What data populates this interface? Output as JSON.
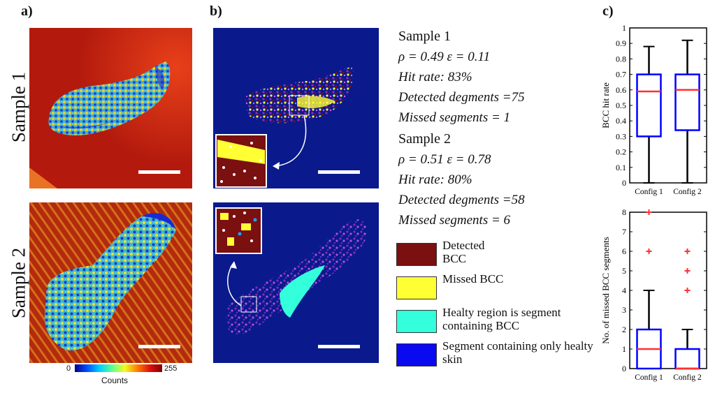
{
  "panels": {
    "a": "a)",
    "b": "b)",
    "c": "c)"
  },
  "rows": {
    "sample1": "Sample 1",
    "sample2": "Sample 2"
  },
  "stats": {
    "sample1": {
      "title": "Sample 1",
      "params": "ρ = 0.49   ε = 0.11",
      "hit_rate": "Hit rate: 83%",
      "detected": "Detected degments =75",
      "missed": "Missed segments = 1"
    },
    "sample2": {
      "title": "Sample 2",
      "params": "ρ = 0.51   ε = 0.78",
      "hit_rate": "Hit rate: 80%",
      "detected": "Detected degments =58",
      "missed": "Missed segments = 6"
    }
  },
  "legend": [
    {
      "label": "Detected BCC",
      "color": "#7a1010"
    },
    {
      "label": "Missed BCC",
      "color": "#ffff33"
    },
    {
      "label": "Healty region is segment containing BCC",
      "color": "#33ffdd"
    },
    {
      "label": "Segment containing only healty skin",
      "color": "#0a0af0"
    }
  ],
  "colorbar": {
    "min": "0",
    "max": "255",
    "label": "Counts"
  },
  "colors": {
    "background_red": "#b31a0d",
    "background_blue": "#0a1a8c",
    "box_edge": "#0000ff",
    "median": "#ff3030",
    "outlier": "#ff3030"
  },
  "chart_data": [
    {
      "type": "box",
      "ylabel": "BCC hit rate",
      "categories": [
        "Config 1",
        "Config 2"
      ],
      "ylim": [
        0,
        1
      ],
      "yticks": [
        "0",
        "0.1",
        "0.2",
        "0.3",
        "0.4",
        "0.5",
        "0.6",
        "0.7",
        "0.8",
        "0.9",
        "1"
      ],
      "boxes": [
        {
          "min": 0,
          "q1": 0.3,
          "median": 0.59,
          "q3": 0.7,
          "max": 0.88,
          "outliers": []
        },
        {
          "min": 0,
          "q1": 0.34,
          "median": 0.6,
          "q3": 0.7,
          "max": 0.92,
          "outliers": []
        }
      ]
    },
    {
      "type": "box",
      "ylabel": "No. of missed BCC segments",
      "categories": [
        "Config 1",
        "Config 2"
      ],
      "ylim": [
        0,
        8
      ],
      "yticks": [
        "0",
        "1",
        "2",
        "3",
        "4",
        "5",
        "6",
        "7",
        "8"
      ],
      "boxes": [
        {
          "min": 0,
          "q1": 0,
          "median": 1,
          "q3": 2,
          "max": 4,
          "outliers": [
            6,
            8
          ]
        },
        {
          "min": 0,
          "q1": 0,
          "median": 0,
          "q3": 1,
          "max": 2,
          "outliers": [
            4,
            5,
            6
          ]
        }
      ]
    }
  ]
}
